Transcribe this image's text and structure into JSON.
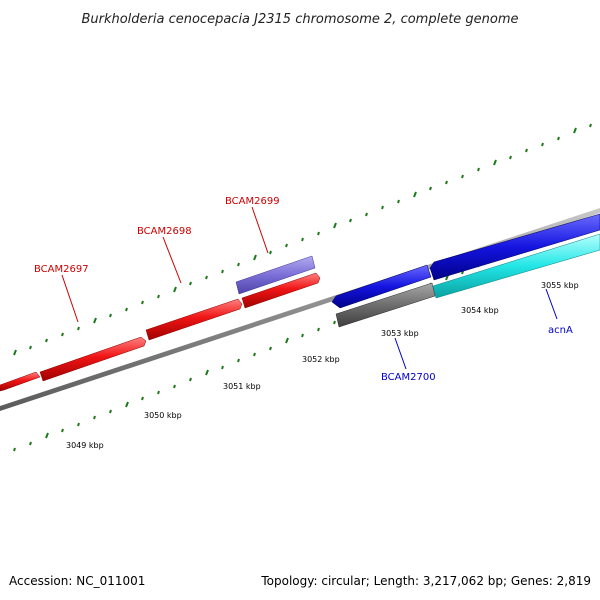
{
  "title": "Burkholderia cenocepacia J2315 chromosome 2, complete genome",
  "footer": {
    "accession": "Accession: NC_011001",
    "summary": "Topology: circular; Length: 3,217,062 bp; Genes: 2,819"
  },
  "colors": {
    "backbone": "#8c8c8c",
    "tick": "#1a7a1a",
    "red_gene": "#f01515",
    "purple_gene": "#7b6fd8",
    "blue_gene": "#1414e0",
    "gray_gene": "#6e6e6e",
    "cyan_gene": "#22e6e6",
    "label_red": "#cc0000",
    "label_blue": "#0000cc"
  },
  "scale_labels": [
    "3049 kbp",
    "3050 kbp",
    "3051 kbp",
    "3052 kbp",
    "3053 kbp",
    "3054 kbp",
    "3055 kbp"
  ],
  "genes": [
    {
      "label": "BCAM2697",
      "color": "red"
    },
    {
      "label": "BCAM2698",
      "color": "red"
    },
    {
      "label": "BCAM2699",
      "color": "red"
    },
    {
      "label": "BCAM2700",
      "color": "blue"
    },
    {
      "label": "acnA",
      "color": "blue"
    }
  ]
}
